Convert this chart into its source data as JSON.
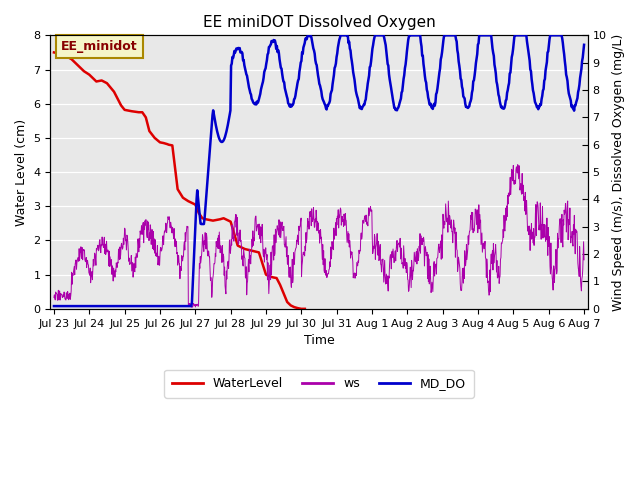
{
  "title": "EE miniDOT Dissolved Oxygen",
  "xlabel": "Time",
  "ylabel_left": "Water Level (cm)",
  "ylabel_right": "Wind Speed (m/s), Dissolved Oxygen (mg/L)",
  "ylim_left": [
    0.0,
    8.0
  ],
  "ylim_right": [
    0.0,
    10.0
  ],
  "yticks_left": [
    0.0,
    1.0,
    2.0,
    3.0,
    4.0,
    5.0,
    6.0,
    7.0,
    8.0
  ],
  "yticks_right_major": [
    0.0,
    1.0,
    2.0,
    3.0,
    4.0,
    5.0,
    6.0,
    7.0,
    8.0,
    9.0,
    10.0
  ],
  "xtick_labels": [
    "Jul 23",
    "Jul 24",
    "Jul 25",
    "Jul 26",
    "Jul 27",
    "Jul 28",
    "Jul 29",
    "Jul 30",
    "Jul 31",
    "Aug 1",
    "Aug 2",
    "Aug 3",
    "Aug 4",
    "Aug 5",
    "Aug 6",
    "Aug 7"
  ],
  "bg_color": "#e8e8e8",
  "annotation_text": "EE_minidot",
  "annotation_bg": "#f5f5c8",
  "annotation_border": "#aa8800",
  "line_colors": {
    "WaterLevel": "#dd0000",
    "ws": "#aa00aa",
    "MD_DO": "#0000cc"
  },
  "title_fontsize": 11,
  "axis_fontsize": 9,
  "tick_fontsize": 8
}
